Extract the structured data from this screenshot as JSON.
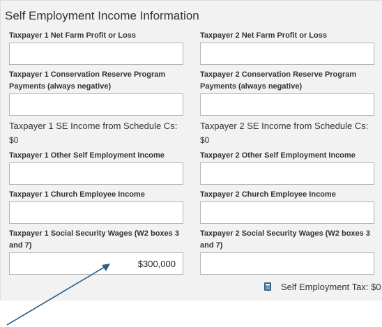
{
  "section": {
    "title": "Self Employment Income Information"
  },
  "taxpayer1": {
    "net_farm_label": "Taxpayer 1 Net Farm Profit or Loss",
    "net_farm_value": "",
    "crp_label_line1": "Taxpayer 1 Conservation Reserve Program",
    "crp_label_line2": "Payments (always negative)",
    "crp_value": "",
    "se_income_label": "Taxpayer 1 SE Income from Schedule Cs:",
    "se_income_value": "$0",
    "other_se_label": "Taxpayer 1 Other Self Employment Income",
    "other_se_value": "",
    "church_label": "Taxpayer 1 Church Employee Income",
    "church_value": "",
    "ss_wages_label_line1": "Taxpayer 1 Social Security Wages (W2 boxes 3",
    "ss_wages_label_line2": "and 7)",
    "ss_wages_value": "$300,000"
  },
  "taxpayer2": {
    "net_farm_label": "Taxpayer 2 Net Farm Profit or Loss",
    "net_farm_value": "",
    "crp_label_line1": "Taxpayer 2 Conservation Reserve Program",
    "crp_label_line2": "Payments (always negative)",
    "crp_value": "",
    "se_income_label": "Taxpayer 2 SE Income from Schedule Cs:",
    "se_income_value": "$0",
    "other_se_label": "Taxpayer 2 Other Self Employment Income",
    "other_se_value": "",
    "church_label": "Taxpayer 2 Church Employee Income",
    "church_value": "",
    "ss_wages_label_line1": "Taxpayer 2 Social Security Wages (W2 boxes 3",
    "ss_wages_label_line2": "and 7)",
    "ss_wages_value": ""
  },
  "summary": {
    "icon": "calculator-icon",
    "se_tax_label": "Self Employment Tax:",
    "se_tax_value": "$0"
  },
  "annotation": {
    "arrow_color": "#2f5f86"
  }
}
